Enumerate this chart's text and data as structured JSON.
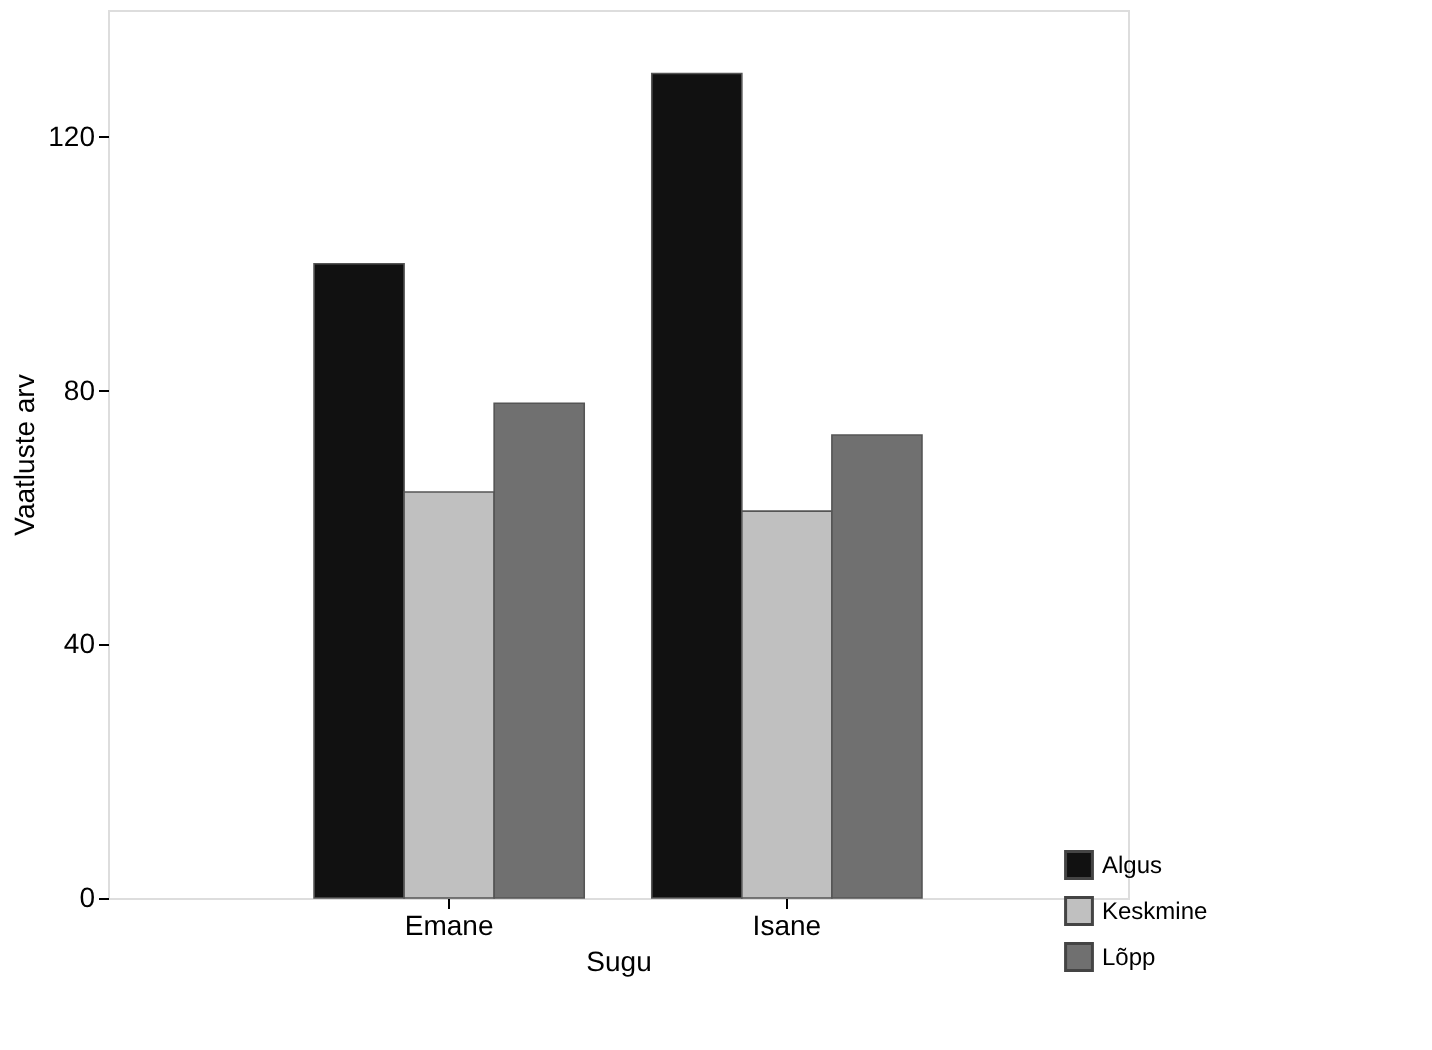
{
  "chart_data": {
    "type": "bar",
    "xlabel": "Sugu",
    "ylabel": "Vaatluste arv",
    "categories": [
      "Emane",
      "Isane"
    ],
    "series": [
      {
        "name": "Algus",
        "color": "#111111",
        "values": [
          100,
          130
        ]
      },
      {
        "name": "Keskmine",
        "color": "#c0c0c0",
        "values": [
          64,
          61
        ]
      },
      {
        "name": "Lõpp",
        "color": "#707070",
        "values": [
          78,
          73
        ]
      }
    ],
    "ylim": [
      0,
      140
    ],
    "yticks": [
      0,
      40,
      80,
      120
    ],
    "grid": false,
    "legend": "bottom right"
  }
}
